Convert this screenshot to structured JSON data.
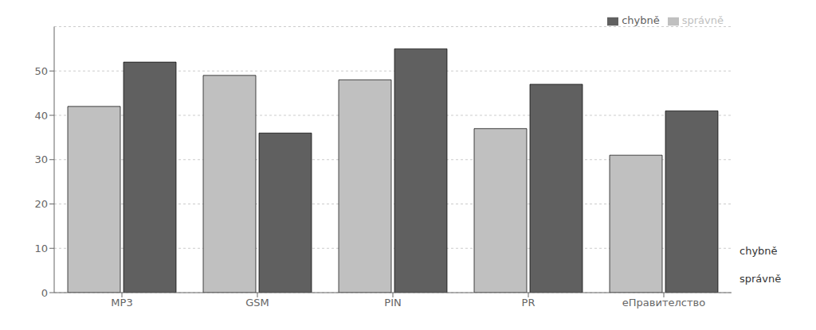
{
  "chart_data": {
    "type": "bar",
    "categories": [
      "MP3",
      "GSM",
      "PIN",
      "PR",
      "еПравителство"
    ],
    "series": [
      {
        "name": "správně",
        "color": "#c0c0c0",
        "values": [
          42,
          49,
          48,
          37,
          31
        ]
      },
      {
        "name": "chybně",
        "color": "#606060",
        "values": [
          52,
          36,
          55,
          47,
          41
        ]
      }
    ],
    "ylim": [
      0,
      60
    ],
    "yticks": [
      0,
      10,
      20,
      30,
      40,
      50
    ],
    "grid": true,
    "legend": "upper right",
    "annotations": [
      {
        "text": "chybně"
      },
      {
        "text": "správně"
      }
    ]
  }
}
